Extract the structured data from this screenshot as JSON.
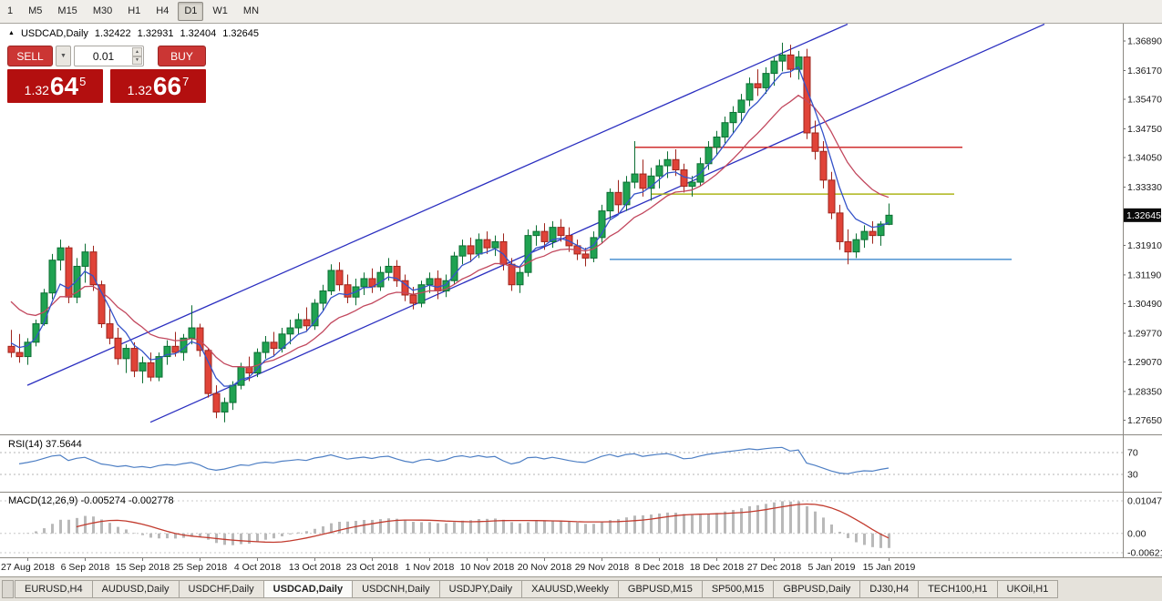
{
  "toolbar": {
    "timeframes": [
      {
        "label": "1",
        "active": false
      },
      {
        "label": "M5",
        "active": false
      },
      {
        "label": "M15",
        "active": false
      },
      {
        "label": "M30",
        "active": false
      },
      {
        "label": "H1",
        "active": false
      },
      {
        "label": "H4",
        "active": false
      },
      {
        "label": "D1",
        "active": true
      },
      {
        "label": "W1",
        "active": false
      },
      {
        "label": "MN",
        "active": false
      }
    ]
  },
  "chart_header": {
    "symbol": "USDCAD,Daily",
    "open": "1.32422",
    "high": "1.32931",
    "low": "1.32404",
    "close": "1.32645"
  },
  "trade_widget": {
    "sell_label": "SELL",
    "buy_label": "BUY",
    "volume": "0.01",
    "sell_quote": {
      "major": "1.32",
      "pips": "64",
      "point": "5"
    },
    "buy_quote": {
      "major": "1.32",
      "pips": "66",
      "point": "7"
    },
    "colors": {
      "button": "#cb3634",
      "quote_bg": "#b30f0f"
    }
  },
  "indicators": {
    "rsi_label": "RSI(14) 37.5644",
    "macd_label": "MACD(12,26,9) -0.005274 -0.002778"
  },
  "chart_data": {
    "type": "candlestick",
    "symbol": "USDCAD",
    "timeframe": "Daily",
    "ylim": [
      1.27305,
      1.37312
    ],
    "y_tick_labels": [
      "1.36890",
      "1.36170",
      "1.35470",
      "1.34750",
      "1.34050",
      "1.33330",
      "1.31910",
      "1.31190",
      "1.30490",
      "1.29770",
      "1.29070",
      "1.28350",
      "1.27650"
    ],
    "current_price": "1.32645",
    "x_tick_labels": [
      "27 Aug 2018",
      "6 Sep 2018",
      "15 Sep 2018",
      "25 Sep 2018",
      "4 Oct 2018",
      "13 Oct 2018",
      "23 Oct 2018",
      "1 Nov 2018",
      "10 Nov 2018",
      "20 Nov 2018",
      "29 Nov 2018",
      "8 Dec 2018",
      "18 Dec 2018",
      "27 Dec 2018",
      "5 Jan 2019",
      "15 Jan 2019"
    ],
    "tick_offset": 2,
    "candles_per_tick": 7,
    "ohlc": [
      [
        1.2945,
        1.2985,
        1.2918,
        1.293
      ],
      [
        1.293,
        1.2975,
        1.2905,
        1.292
      ],
      [
        1.292,
        1.2965,
        1.29,
        1.2955
      ],
      [
        1.2955,
        1.301,
        1.2945,
        1.3
      ],
      [
        1.3,
        1.3085,
        1.2995,
        1.3075
      ],
      [
        1.3075,
        1.317,
        1.306,
        1.3155
      ],
      [
        1.3155,
        1.3205,
        1.313,
        1.3185
      ],
      [
        1.3185,
        1.319,
        1.305,
        1.3065
      ],
      [
        1.3065,
        1.316,
        1.305,
        1.314
      ],
      [
        1.314,
        1.3195,
        1.31,
        1.3175
      ],
      [
        1.3175,
        1.319,
        1.308,
        1.3095
      ],
      [
        1.3095,
        1.3105,
        1.299,
        1.3
      ],
      [
        1.3,
        1.304,
        1.295,
        1.2965
      ],
      [
        1.2965,
        1.299,
        1.29,
        1.2915
      ],
      [
        1.2915,
        1.295,
        1.288,
        1.294
      ],
      [
        1.294,
        1.2955,
        1.287,
        1.2885
      ],
      [
        1.2885,
        1.292,
        1.2855,
        1.2905
      ],
      [
        1.2905,
        1.293,
        1.286,
        1.287
      ],
      [
        1.287,
        1.293,
        1.286,
        1.292
      ],
      [
        1.292,
        1.296,
        1.29,
        1.2945
      ],
      [
        1.2945,
        1.298,
        1.292,
        1.293
      ],
      [
        1.293,
        1.2975,
        1.291,
        1.2965
      ],
      [
        1.2965,
        1.3045,
        1.295,
        1.299
      ],
      [
        1.299,
        1.3,
        1.292,
        1.2935
      ],
      [
        1.2935,
        1.294,
        1.282,
        1.283
      ],
      [
        1.283,
        1.285,
        1.277,
        1.2785
      ],
      [
        1.2785,
        1.282,
        1.276,
        1.2808
      ],
      [
        1.2808,
        1.286,
        1.279,
        1.285
      ],
      [
        1.285,
        1.2905,
        1.284,
        1.2895
      ],
      [
        1.2895,
        1.292,
        1.286,
        1.288
      ],
      [
        1.288,
        1.294,
        1.287,
        1.293
      ],
      [
        1.293,
        1.297,
        1.2915,
        1.2955
      ],
      [
        1.2955,
        1.298,
        1.292,
        1.294
      ],
      [
        1.294,
        1.299,
        1.293,
        1.2975
      ],
      [
        1.2975,
        1.301,
        1.295,
        1.299
      ],
      [
        1.299,
        1.3025,
        1.2975,
        1.301
      ],
      [
        1.301,
        1.304,
        1.298,
        1.2995
      ],
      [
        1.2995,
        1.306,
        1.2985,
        1.305
      ],
      [
        1.305,
        1.3095,
        1.303,
        1.308
      ],
      [
        1.308,
        1.3145,
        1.307,
        1.313
      ],
      [
        1.313,
        1.315,
        1.308,
        1.3095
      ],
      [
        1.3095,
        1.312,
        1.305,
        1.3065
      ],
      [
        1.3065,
        1.311,
        1.3045,
        1.309
      ],
      [
        1.309,
        1.3125,
        1.307,
        1.311
      ],
      [
        1.311,
        1.3135,
        1.3075,
        1.309
      ],
      [
        1.309,
        1.314,
        1.308,
        1.3125
      ],
      [
        1.3125,
        1.316,
        1.3105,
        1.314
      ],
      [
        1.314,
        1.3155,
        1.309,
        1.3105
      ],
      [
        1.3105,
        1.312,
        1.3055,
        1.307
      ],
      [
        1.307,
        1.309,
        1.3035,
        1.305
      ],
      [
        1.305,
        1.3105,
        1.304,
        1.3095
      ],
      [
        1.3095,
        1.3125,
        1.3075,
        1.311
      ],
      [
        1.311,
        1.313,
        1.306,
        1.308
      ],
      [
        1.308,
        1.312,
        1.3065,
        1.3105
      ],
      [
        1.3105,
        1.3175,
        1.3095,
        1.3165
      ],
      [
        1.3165,
        1.3205,
        1.3145,
        1.319
      ],
      [
        1.319,
        1.321,
        1.315,
        1.317
      ],
      [
        1.317,
        1.322,
        1.316,
        1.3205
      ],
      [
        1.3205,
        1.3225,
        1.317,
        1.3185
      ],
      [
        1.3185,
        1.3215,
        1.3165,
        1.32
      ],
      [
        1.32,
        1.322,
        1.313,
        1.3145
      ],
      [
        1.3145,
        1.316,
        1.308,
        1.3095
      ],
      [
        1.3095,
        1.314,
        1.3075,
        1.3125
      ],
      [
        1.3125,
        1.323,
        1.3115,
        1.3215
      ],
      [
        1.3215,
        1.324,
        1.319,
        1.3225
      ],
      [
        1.3225,
        1.3245,
        1.318,
        1.32
      ],
      [
        1.32,
        1.325,
        1.3185,
        1.3235
      ],
      [
        1.3235,
        1.3255,
        1.32,
        1.3215
      ],
      [
        1.3215,
        1.3235,
        1.3175,
        1.319
      ],
      [
        1.319,
        1.3205,
        1.3155,
        1.317
      ],
      [
        1.317,
        1.3185,
        1.314,
        1.316
      ],
      [
        1.316,
        1.3225,
        1.315,
        1.321
      ],
      [
        1.321,
        1.329,
        1.3195,
        1.3275
      ],
      [
        1.3275,
        1.333,
        1.3255,
        1.332
      ],
      [
        1.332,
        1.335,
        1.327,
        1.329
      ],
      [
        1.329,
        1.336,
        1.3275,
        1.3345
      ],
      [
        1.3345,
        1.3445,
        1.333,
        1.3365
      ],
      [
        1.3365,
        1.34,
        1.331,
        1.333
      ],
      [
        1.333,
        1.338,
        1.33,
        1.336
      ],
      [
        1.336,
        1.34,
        1.333,
        1.3385
      ],
      [
        1.3385,
        1.342,
        1.3355,
        1.34
      ],
      [
        1.34,
        1.3425,
        1.336,
        1.3375
      ],
      [
        1.3375,
        1.339,
        1.332,
        1.3335
      ],
      [
        1.3335,
        1.336,
        1.331,
        1.3345
      ],
      [
        1.3345,
        1.3405,
        1.3335,
        1.339
      ],
      [
        1.339,
        1.3445,
        1.3375,
        1.343
      ],
      [
        1.343,
        1.347,
        1.341,
        1.3455
      ],
      [
        1.3455,
        1.3505,
        1.344,
        1.349
      ],
      [
        1.349,
        1.353,
        1.3465,
        1.3515
      ],
      [
        1.3515,
        1.356,
        1.349,
        1.3545
      ],
      [
        1.3545,
        1.36,
        1.353,
        1.3585
      ],
      [
        1.3585,
        1.362,
        1.3555,
        1.3575
      ],
      [
        1.3575,
        1.3625,
        1.356,
        1.361
      ],
      [
        1.361,
        1.365,
        1.358,
        1.364
      ],
      [
        1.364,
        1.3685,
        1.3615,
        1.3655
      ],
      [
        1.3655,
        1.368,
        1.36,
        1.362
      ],
      [
        1.362,
        1.3665,
        1.3595,
        1.365
      ],
      [
        1.365,
        1.367,
        1.345,
        1.3465
      ],
      [
        1.3465,
        1.3495,
        1.34,
        1.342
      ],
      [
        1.342,
        1.3445,
        1.333,
        1.335
      ],
      [
        1.335,
        1.337,
        1.3255,
        1.327
      ],
      [
        1.327,
        1.329,
        1.318,
        1.32
      ],
      [
        1.32,
        1.323,
        1.3145,
        1.3175
      ],
      [
        1.3175,
        1.322,
        1.316,
        1.3205
      ],
      [
        1.3205,
        1.324,
        1.3185,
        1.3225
      ],
      [
        1.3225,
        1.325,
        1.3195,
        1.3215
      ],
      [
        1.3215,
        1.325,
        1.319,
        1.3243
      ],
      [
        1.32422,
        1.32931,
        1.32404,
        1.32645
      ]
    ],
    "rsi": {
      "period": 14,
      "levels": [
        70,
        30
      ],
      "last_value": 37.5644
    },
    "macd": {
      "fast": 12,
      "slow": 26,
      "signal": 9,
      "axis_labels": [
        [
          "0.010474",
          0.010474
        ],
        [
          "0.00",
          0
        ],
        [
          "-0.006218",
          -0.006218
        ]
      ],
      "last_values": [
        -0.005274,
        -0.002778
      ]
    },
    "overlays": {
      "ma_fast": {
        "period": 5,
        "seed": 1.2965
      },
      "ma_slow": {
        "period": 13,
        "seed": 1.3075
      },
      "trendlines": [
        {
          "i1": 2,
          "p1": 1.285,
          "i2": 102,
          "p2": 1.373
        },
        {
          "i1": 17,
          "p1": 1.276,
          "i2": 126,
          "p2": 1.373
        }
      ],
      "hlines": [
        {
          "price": 1.343,
          "i1": 76,
          "i2": 116,
          "color": "#cf2f2f"
        },
        {
          "price": 1.3316,
          "i1": 78,
          "i2": 115,
          "color": "#adb41a"
        },
        {
          "price": 1.3157,
          "i1": 73,
          "i2": 122,
          "color": "#5b9bd5"
        }
      ]
    },
    "colors": {
      "up": "#1fa251",
      "up_edge": "#0c6e33",
      "down": "#e04338",
      "down_edge": "#9e241c",
      "ma_fast": "#3553c9",
      "ma_slow": "#c2485e",
      "trend": "#2b2fc0",
      "rsi": "#4e7fc4",
      "macd_bar": "#b9b9b9",
      "macd_signal": "#c23b2e",
      "badge_bg": "#0a0a0a"
    }
  },
  "tabs": [
    {
      "label": "EURUSD,H4",
      "active": false
    },
    {
      "label": "AUDUSD,Daily",
      "active": false
    },
    {
      "label": "USDCHF,Daily",
      "active": false
    },
    {
      "label": "USDCAD,Daily",
      "active": true
    },
    {
      "label": "USDCNH,Daily",
      "active": false
    },
    {
      "label": "USDJPY,Daily",
      "active": false
    },
    {
      "label": "XAUUSD,Weekly",
      "active": false
    },
    {
      "label": "GBPUSD,M15",
      "active": false
    },
    {
      "label": "SP500,M15",
      "active": false
    },
    {
      "label": "GBPUSD,Daily",
      "active": false
    },
    {
      "label": "DJ30,H4",
      "active": false
    },
    {
      "label": "TECH100,H1",
      "active": false
    },
    {
      "label": "UKOil,H1",
      "active": false
    }
  ]
}
